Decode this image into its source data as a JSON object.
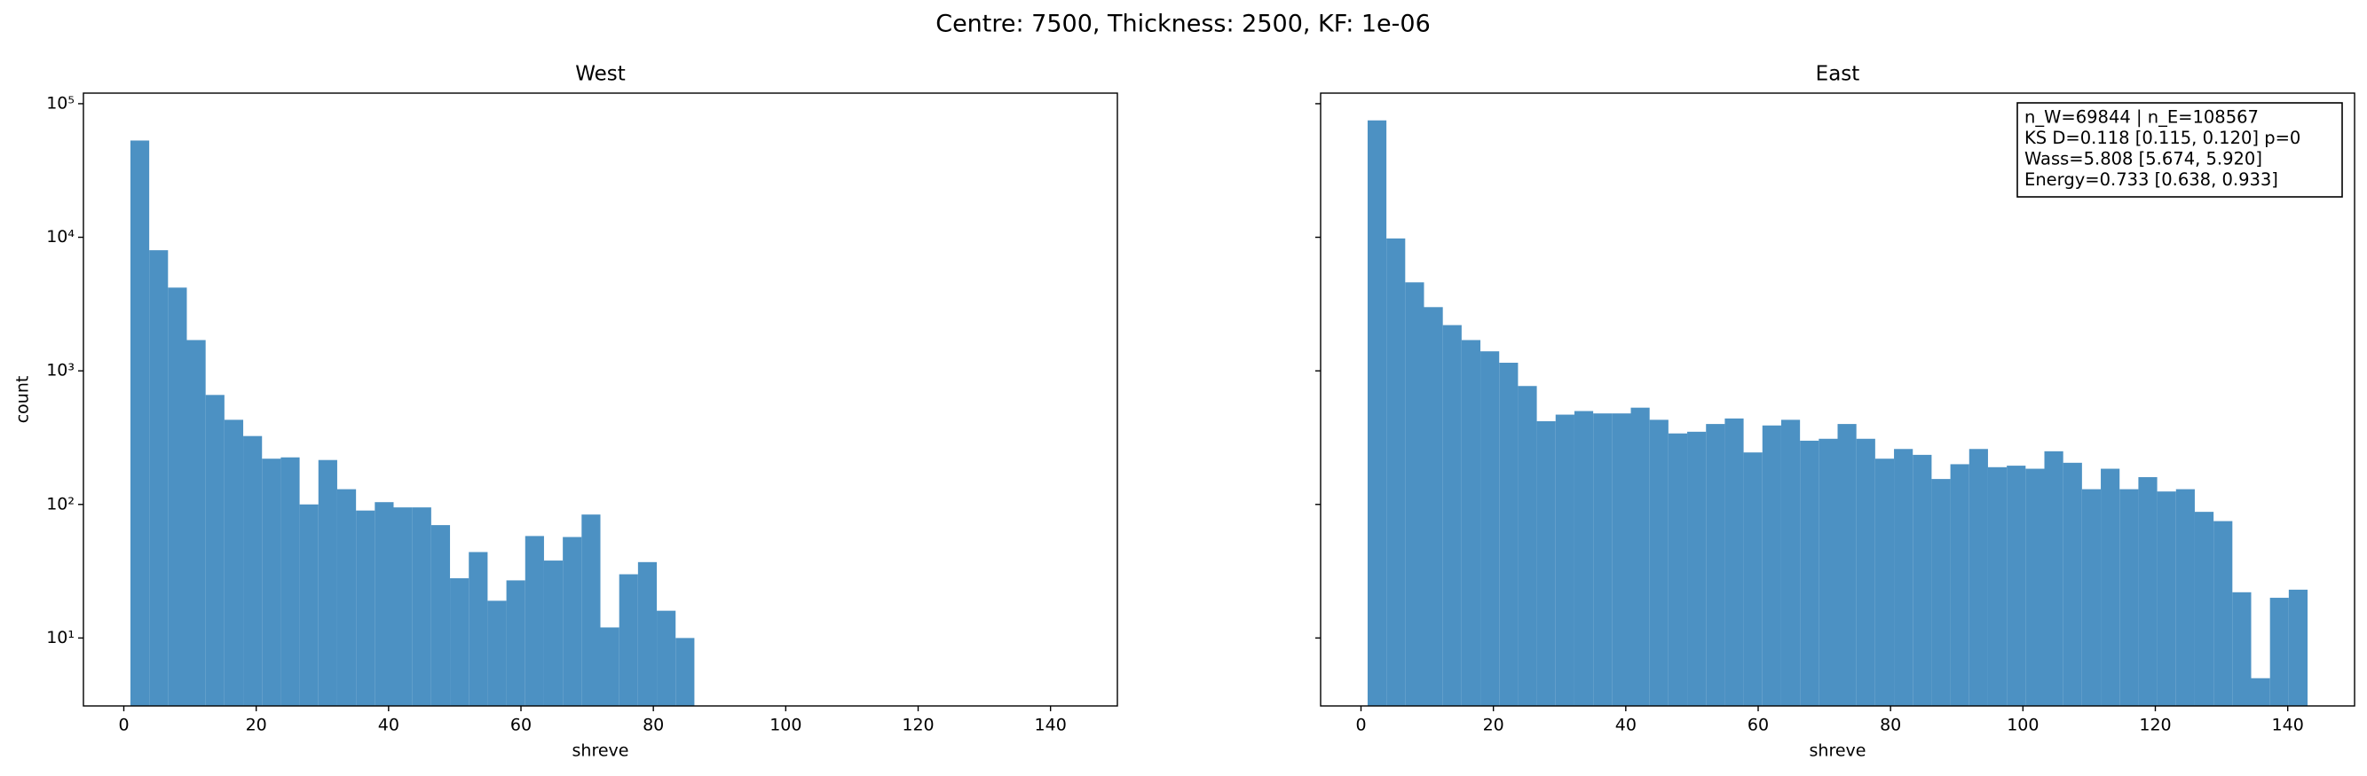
{
  "title": "Centre: 7500, Thickness: 2500, KF: 1e-06",
  "chart_data": [
    {
      "type": "histogram",
      "title": "West",
      "x_label": "shreve",
      "y_label": "count",
      "color": "#4c91c3",
      "log_y": true,
      "show_ytick_labels": true,
      "bins": [
        1,
        3.84,
        6.68,
        9.52,
        12.36,
        15.2,
        18.04,
        20.88,
        23.72,
        26.56,
        29.4,
        32.24,
        35.08,
        37.92,
        40.76,
        43.6,
        46.44,
        49.28,
        52.12,
        54.96,
        57.8,
        60.64,
        63.48,
        66.32,
        69.16,
        72,
        74.84,
        77.68,
        80.52,
        83.36,
        86.2,
        89.04,
        91.88,
        94.72,
        97.56,
        100.4,
        103.24,
        106.08,
        108.92,
        111.76,
        114.6,
        117.44,
        120.28,
        123.12,
        125.96,
        128.8,
        131.64,
        134.48,
        137.32,
        140.16,
        143
      ],
      "values": [
        53000,
        8000,
        4200,
        1700,
        660,
        430,
        325,
        220,
        225,
        100,
        215,
        130,
        90,
        104,
        95,
        95,
        70,
        28,
        44,
        19,
        27,
        58,
        38,
        57,
        84,
        12,
        30,
        37,
        16,
        10,
        0,
        0,
        0,
        0,
        0,
        0,
        0,
        0,
        0,
        0,
        0,
        0,
        0,
        0,
        0,
        0,
        0,
        0,
        0,
        0
      ],
      "xlim": [
        -6.1,
        150.1
      ],
      "xticks": [
        0,
        20,
        40,
        60,
        80,
        100,
        120,
        140
      ],
      "ylim": [
        3.1,
        120000
      ],
      "yticks": [
        {
          "value": 10,
          "label": "10¹"
        },
        {
          "value": 100,
          "label": "10²"
        },
        {
          "value": 1000,
          "label": "10³"
        },
        {
          "value": 10000,
          "label": "10⁴"
        },
        {
          "value": 100000,
          "label": "10⁵"
        }
      ]
    },
    {
      "type": "histogram",
      "title": "East",
      "x_label": "shreve",
      "color": "#4c91c3",
      "log_y": true,
      "show_ytick_labels": false,
      "annotation": [
        "n_W=69844 | n_E=108567",
        "KS D=0.118 [0.115, 0.120]  p=0",
        "Wass=5.808 [5.674, 5.920]",
        "Energy=0.733 [0.638, 0.933]"
      ],
      "bins": [
        1,
        3.84,
        6.68,
        9.52,
        12.36,
        15.2,
        18.04,
        20.88,
        23.72,
        26.56,
        29.4,
        32.24,
        35.08,
        37.92,
        40.76,
        43.6,
        46.44,
        49.28,
        52.12,
        54.96,
        57.8,
        60.64,
        63.48,
        66.32,
        69.16,
        72,
        74.84,
        77.68,
        80.52,
        83.36,
        86.2,
        89.04,
        91.88,
        94.72,
        97.56,
        100.4,
        103.24,
        106.08,
        108.92,
        111.76,
        114.6,
        117.44,
        120.28,
        123.12,
        125.96,
        128.8,
        131.64,
        134.48,
        137.32,
        140.16,
        143
      ],
      "values": [
        75000,
        9800,
        4600,
        3000,
        2200,
        1700,
        1400,
        1150,
        770,
        420,
        470,
        500,
        480,
        480,
        530,
        430,
        340,
        350,
        400,
        440,
        245,
        390,
        430,
        300,
        310,
        400,
        310,
        220,
        260,
        235,
        155,
        200,
        260,
        190,
        195,
        185,
        250,
        205,
        130,
        185,
        130,
        160,
        125,
        130,
        88,
        75,
        22,
        5,
        20,
        23
      ],
      "xlim": [
        -6.1,
        150.1
      ],
      "xticks": [
        0,
        20,
        40,
        60,
        80,
        100,
        120,
        140
      ],
      "ylim": [
        3.1,
        120000
      ],
      "yticks": [
        {
          "value": 10,
          "label": "10¹"
        },
        {
          "value": 100,
          "label": "10²"
        },
        {
          "value": 1000,
          "label": "10³"
        },
        {
          "value": 10000,
          "label": "10⁴"
        },
        {
          "value": 100000,
          "label": "10⁵"
        }
      ]
    }
  ]
}
